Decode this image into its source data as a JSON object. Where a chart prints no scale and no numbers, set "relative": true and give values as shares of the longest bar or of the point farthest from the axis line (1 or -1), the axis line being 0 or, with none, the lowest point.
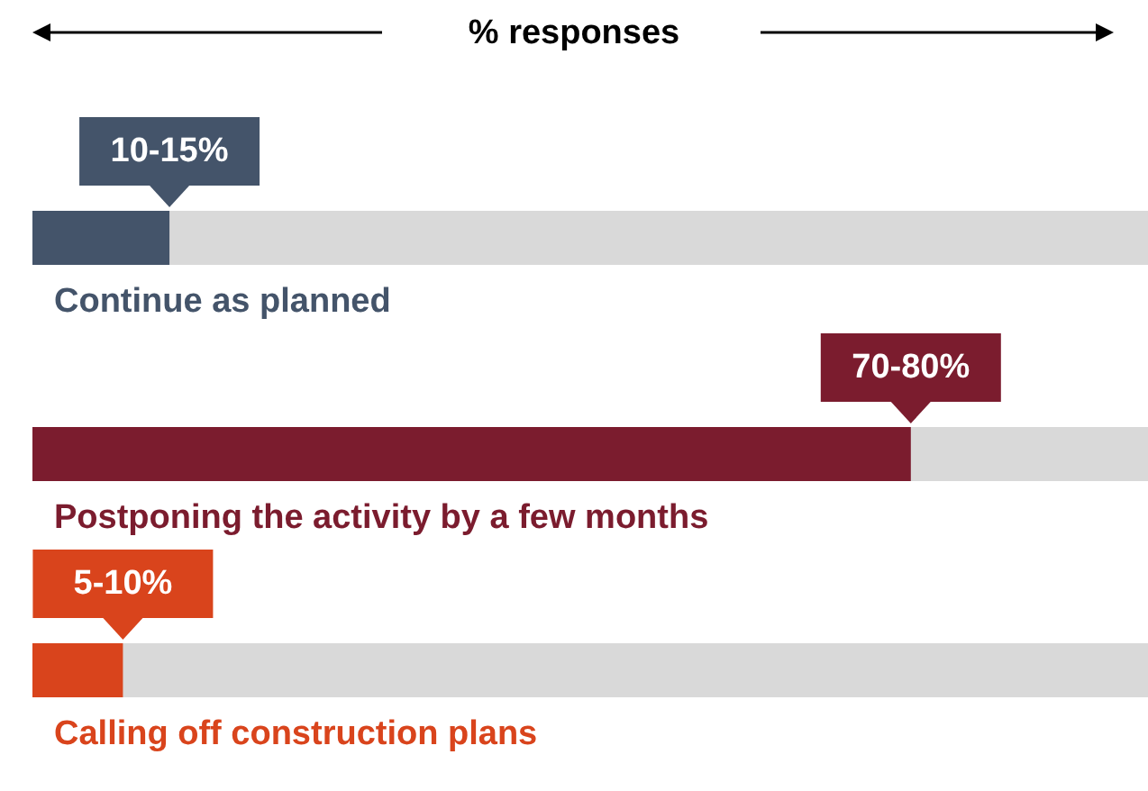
{
  "chart_data": {
    "type": "bar",
    "orientation": "horizontal",
    "title": "% responses",
    "categories": [
      "Continue as planned",
      "Postponing the activity by a few months",
      "Calling off construction plans"
    ],
    "values": [
      0.156,
      1,
      0.103
    ],
    "relative": true,
    "colors": [
      "#44546a",
      "#7b1c2e",
      "#d9441c"
    ],
    "annotations": [
      "10-15%",
      "70-80%",
      "5-10%"
    ]
  }
}
